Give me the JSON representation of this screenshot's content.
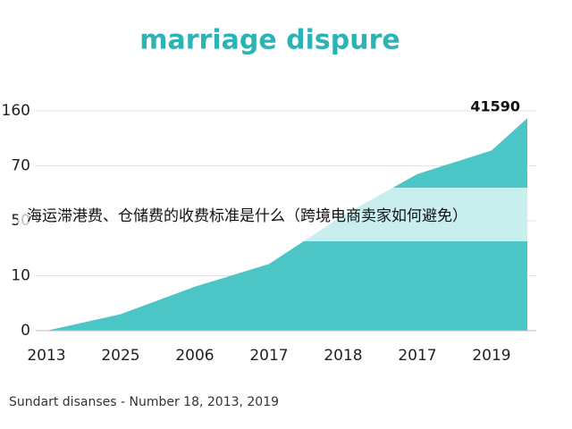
{
  "chart_data": {
    "type": "area",
    "title": "marriage dispure",
    "categories": [
      "2013",
      "2025",
      "2006",
      "2017",
      "2018",
      "2017",
      "2019",
      null
    ],
    "values": [
      0,
      3,
      8,
      18.5,
      52,
      67,
      95,
      148
    ],
    "color": "#4cc5c7",
    "ylim": [
      0,
      160
    ],
    "yticks": [
      0,
      10,
      50,
      70,
      160
    ],
    "grid": true,
    "annotation": "41590",
    "overlay_text": "海运滞港费、仓储费的收费标准是什么（跨境电商卖家如何避免）",
    "source": "Sundart disanses - Number 18, 2013, 2019"
  }
}
